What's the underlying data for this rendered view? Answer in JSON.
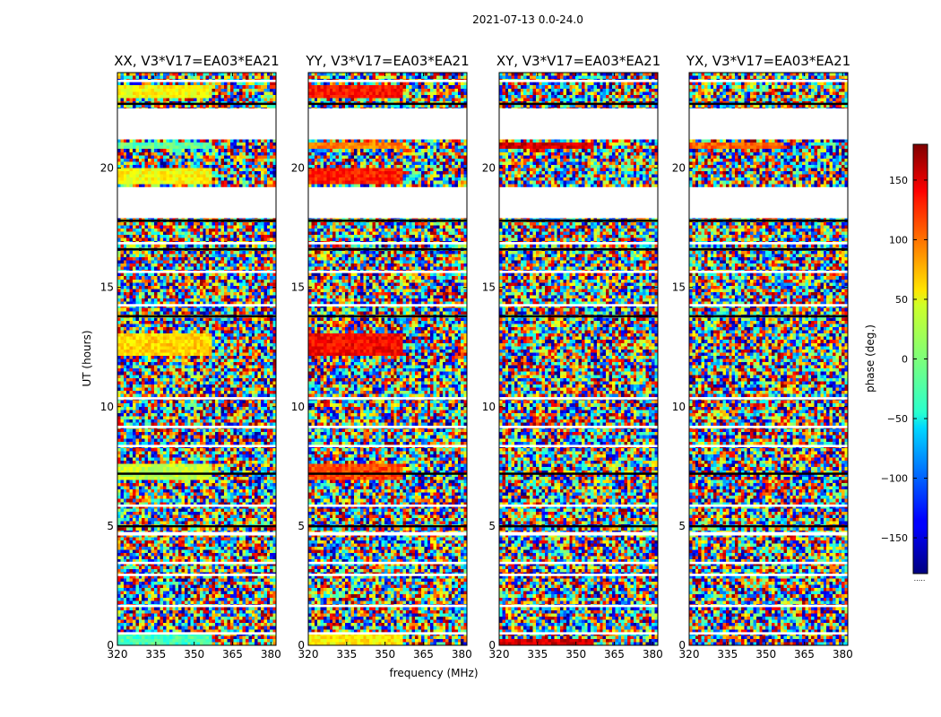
{
  "chart_data": {
    "type": "heatmap",
    "title": "2021-07-13 0.0-24.0",
    "xlabel": "frequency (MHz)",
    "ylabel": "UT (hours)",
    "xlim": [
      320,
      382
    ],
    "ylim": [
      0,
      24
    ],
    "xticks": [
      "320",
      "335",
      "350",
      "365",
      "380"
    ],
    "yticks": [
      "0",
      "5",
      "10",
      "15",
      "20"
    ],
    "colorbar": {
      "label": "phase (deg.)",
      "range": [
        -180,
        180
      ],
      "ticks": [
        "150",
        "100",
        "50",
        "0",
        "−50",
        "−100",
        "−150"
      ],
      "colormap": "jet",
      "footer": "....."
    },
    "panels": [
      {
        "title": "XX, V3*V17=EA03*EA21",
        "polarization": "XX",
        "coherent_phase_deg": [
          {
            "ut": [
              0.0,
              0.6
            ],
            "phase": -20
          },
          {
            "ut": [
              6.9,
              7.6
            ],
            "phase": 25
          },
          {
            "ut": [
              12.2,
              13.0
            ],
            "phase": 60
          },
          {
            "ut": [
              19.3,
              20.0
            ],
            "phase": 45
          },
          {
            "ut": [
              20.8,
              21.1
            ],
            "phase": -10
          },
          {
            "ut": [
              22.9,
              23.5
            ],
            "phase": 45
          }
        ]
      },
      {
        "title": "YY, V3*V17=EA03*EA21",
        "polarization": "YY",
        "coherent_phase_deg": [
          {
            "ut": [
              0.0,
              0.6
            ],
            "phase": 50
          },
          {
            "ut": [
              6.9,
              7.6
            ],
            "phase": 110
          },
          {
            "ut": [
              12.2,
              13.0
            ],
            "phase": 135
          },
          {
            "ut": [
              19.3,
              20.0
            ],
            "phase": 125
          },
          {
            "ut": [
              20.8,
              21.1
            ],
            "phase": 90
          },
          {
            "ut": [
              22.9,
              23.5
            ],
            "phase": 130
          }
        ]
      },
      {
        "title": "XY, V3*V17=EA03*EA21",
        "polarization": "XY",
        "coherent_phase_deg": [
          {
            "ut": [
              0.0,
              0.3
            ],
            "phase": 150
          },
          {
            "ut": [
              20.8,
              21.1
            ],
            "phase": 150
          }
        ]
      },
      {
        "title": "YX, V3*V17=EA03*EA21",
        "polarization": "YX",
        "coherent_phase_deg": [
          {
            "ut": [
              20.8,
              21.1
            ],
            "phase": 100
          }
        ]
      }
    ],
    "flagged_ut_ranges": [
      [
        21.2,
        22.5
      ],
      [
        17.9,
        19.2
      ],
      [
        0.45,
        0.55
      ],
      [
        1.6,
        1.7
      ],
      [
        2.9,
        3.0
      ],
      [
        3.4,
        3.5
      ],
      [
        4.6,
        4.75
      ],
      [
        5.8,
        5.9
      ],
      [
        8.3,
        8.4
      ],
      [
        9.1,
        9.2
      ],
      [
        10.3,
        10.4
      ],
      [
        14.2,
        14.3
      ],
      [
        15.6,
        15.7
      ],
      [
        16.8,
        16.9
      ],
      [
        23.6,
        23.7
      ]
    ],
    "dark_gap_ut": [
      5.0,
      7.2,
      13.8,
      16.6,
      17.8,
      22.7
    ]
  }
}
